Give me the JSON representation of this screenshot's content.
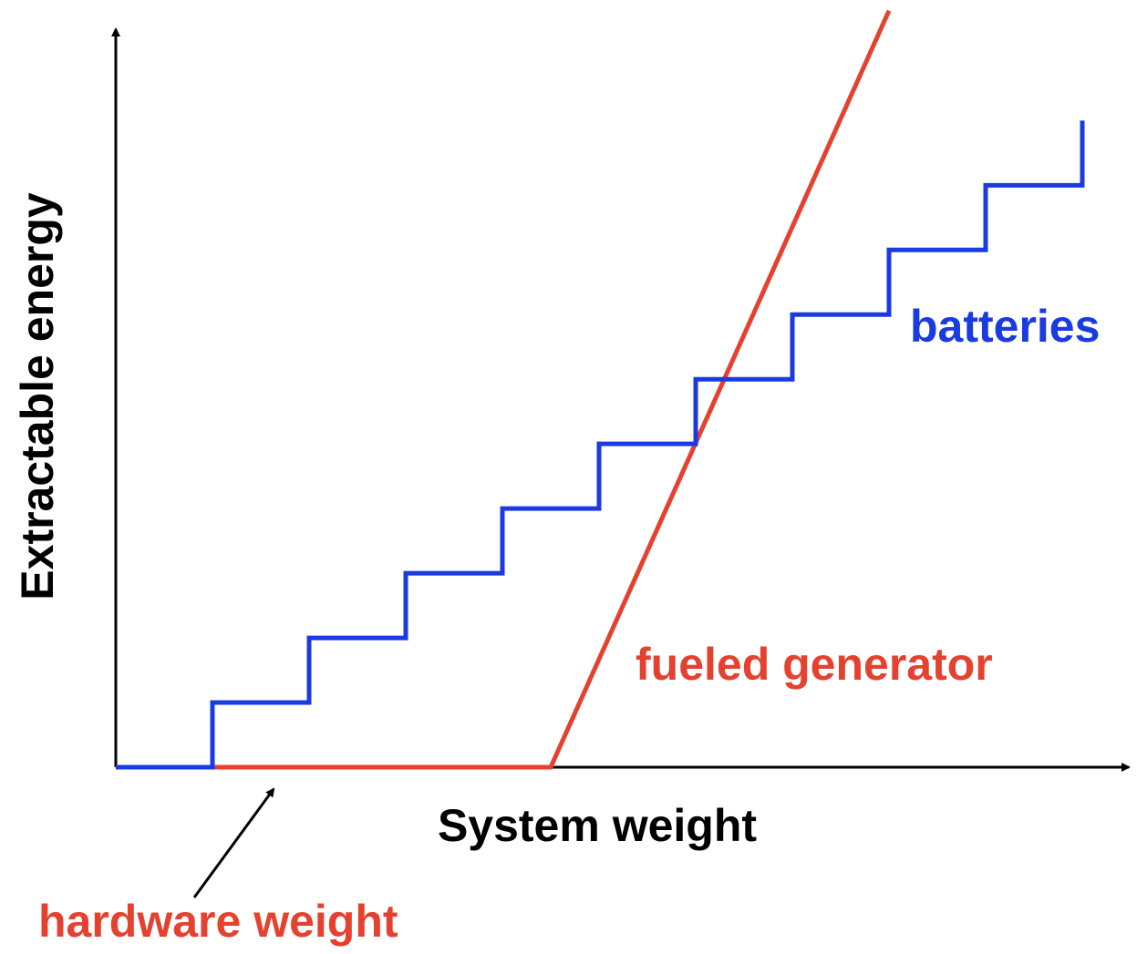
{
  "chart_data": {
    "type": "line",
    "xlabel": "System weight",
    "ylabel": "Extractable energy",
    "xlim": [
      0,
      10.5
    ],
    "ylim": [
      0,
      11.4
    ],
    "grid": false,
    "series": [
      {
        "name": "batteries",
        "color": "#1a3be0",
        "x": [
          0,
          1,
          1,
          2,
          2,
          3,
          3,
          4,
          4,
          5,
          5,
          6,
          6,
          7,
          7,
          8,
          8,
          9,
          9,
          10,
          10
        ],
        "values": [
          0,
          0,
          1,
          1,
          2,
          2,
          3,
          3,
          4,
          4,
          5,
          5,
          6,
          6,
          7,
          7,
          8,
          8,
          9,
          9,
          10
        ]
      },
      {
        "name": "fueled generator",
        "color": "#e5412f",
        "x": [
          0,
          4.5,
          8.0
        ],
        "values": [
          0,
          0,
          11.7
        ]
      }
    ],
    "annotations": [
      {
        "text": "hardware weight",
        "color": "#e5412f"
      }
    ]
  }
}
